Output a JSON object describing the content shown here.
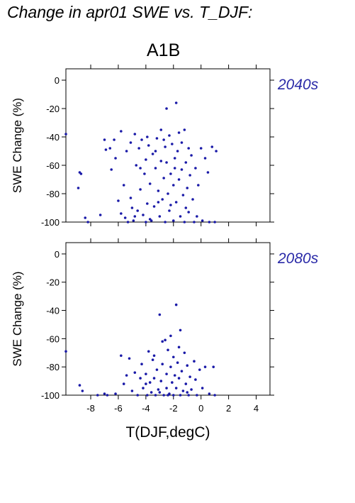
{
  "title": "Change in apr01 SWE vs. T_DJF:",
  "scenario": "A1B",
  "colors": {
    "points": "#1a1aa8",
    "period_label": "#2a2aa8"
  },
  "chart_data": [
    {
      "type": "scatter",
      "period": "2040s",
      "xlabel": "T(DJF,degC)",
      "ylabel": "SWE Change (%)",
      "xlim": [
        -9.8,
        5.0
      ],
      "ylim": [
        -100,
        8
      ],
      "xticks": [
        -8,
        -6,
        -4,
        -2,
        0,
        2,
        4
      ],
      "yticks": [
        0,
        -20,
        -40,
        -60,
        -80,
        -100
      ],
      "show_xtick_labels": false,
      "points": [
        [
          -9.8,
          -38
        ],
        [
          -8.8,
          -65
        ],
        [
          -8.7,
          -66
        ],
        [
          -8.9,
          -76
        ],
        [
          -8.4,
          -97
        ],
        [
          -8.2,
          -100
        ],
        [
          -7.3,
          -95
        ],
        [
          -7.0,
          -42
        ],
        [
          -6.9,
          -49
        ],
        [
          -6.6,
          -48
        ],
        [
          -6.5,
          -63
        ],
        [
          -6.3,
          -42
        ],
        [
          -6.2,
          -55
        ],
        [
          -6.0,
          -85
        ],
        [
          -5.8,
          -36
        ],
        [
          -5.8,
          -94
        ],
        [
          -5.6,
          -74
        ],
        [
          -5.5,
          -97
        ],
        [
          -5.4,
          -50
        ],
        [
          -5.3,
          -100
        ],
        [
          -5.1,
          -44
        ],
        [
          -5.1,
          -83
        ],
        [
          -5.0,
          -90
        ],
        [
          -4.9,
          -99
        ],
        [
          -4.8,
          -38
        ],
        [
          -4.7,
          -60
        ],
        [
          -4.6,
          -92
        ],
        [
          -4.5,
          -48
        ],
        [
          -4.4,
          -77
        ],
        [
          -4.3,
          -42
        ],
        [
          -4.2,
          -95
        ],
        [
          -4.1,
          -66
        ],
        [
          -4.0,
          -56
        ],
        [
          -4.0,
          -100
        ],
        [
          -3.9,
          -87
        ],
        [
          -3.8,
          -46
        ],
        [
          -3.7,
          -73
        ],
        [
          -3.6,
          -99
        ],
        [
          -3.5,
          -52
        ],
        [
          -3.4,
          -89
        ],
        [
          -3.3,
          -62
        ],
        [
          -3.2,
          -41
        ],
        [
          -3.1,
          -78
        ],
        [
          -3.0,
          -96
        ],
        [
          -2.9,
          -57
        ],
        [
          -2.9,
          -35
        ],
        [
          -2.8,
          -84
        ],
        [
          -2.7,
          -69
        ],
        [
          -2.6,
          -47
        ],
        [
          -2.6,
          -100
        ],
        [
          -2.5,
          -20
        ],
        [
          -2.5,
          -58
        ],
        [
          -2.4,
          -80
        ],
        [
          -2.3,
          -39
        ],
        [
          -2.3,
          -92
        ],
        [
          -2.2,
          -66
        ],
        [
          -2.1,
          -45
        ],
        [
          -2.0,
          -74
        ],
        [
          -2.0,
          -99
        ],
        [
          -1.9,
          -55
        ],
        [
          -1.8,
          -16
        ],
        [
          -1.8,
          -86
        ],
        [
          -1.7,
          -50
        ],
        [
          -1.6,
          -37
        ],
        [
          -1.6,
          -70
        ],
        [
          -1.5,
          -96
        ],
        [
          -1.4,
          -44
        ],
        [
          -1.4,
          -63
        ],
        [
          -1.3,
          -81
        ],
        [
          -1.2,
          -35
        ],
        [
          -1.2,
          -100
        ],
        [
          -1.1,
          -58
        ],
        [
          -1.0,
          -76
        ],
        [
          -0.9,
          -48
        ],
        [
          -0.9,
          -93
        ],
        [
          -0.8,
          -67
        ],
        [
          -0.7,
          -53
        ],
        [
          -0.6,
          -84
        ],
        [
          -0.5,
          -100
        ],
        [
          -0.4,
          -62
        ],
        [
          -0.3,
          -96
        ],
        [
          -0.2,
          -74
        ],
        [
          0.0,
          -48
        ],
        [
          0.1,
          -99
        ],
        [
          0.3,
          -55
        ],
        [
          0.5,
          -65
        ],
        [
          0.6,
          -100
        ],
        [
          0.8,
          -47
        ],
        [
          1.0,
          -100
        ],
        [
          1.1,
          -50
        ],
        [
          -3.9,
          -40
        ],
        [
          -3.3,
          -50
        ],
        [
          -2.7,
          -42
        ],
        [
          -1.9,
          -62
        ],
        [
          -4.4,
          -62
        ],
        [
          -3.1,
          -86
        ],
        [
          -2.2,
          -88
        ],
        [
          -1.1,
          -90
        ],
        [
          -4.8,
          -96
        ],
        [
          -3.7,
          -98
        ]
      ]
    },
    {
      "type": "scatter",
      "period": "2080s",
      "xlabel": "T(DJF,degC)",
      "ylabel": "SWE Change (%)",
      "xlim": [
        -9.8,
        5.0
      ],
      "ylim": [
        -100,
        8
      ],
      "xticks": [
        -8,
        -6,
        -4,
        -2,
        0,
        2,
        4
      ],
      "yticks": [
        0,
        -20,
        -40,
        -60,
        -80,
        -100
      ],
      "show_xtick_labels": true,
      "points": [
        [
          -9.8,
          -69
        ],
        [
          -8.8,
          -93
        ],
        [
          -8.6,
          -97
        ],
        [
          -7.5,
          -100
        ],
        [
          -7.0,
          -99
        ],
        [
          -6.8,
          -100
        ],
        [
          -6.2,
          -99
        ],
        [
          -5.8,
          -72
        ],
        [
          -5.6,
          -92
        ],
        [
          -5.4,
          -86
        ],
        [
          -5.2,
          -74
        ],
        [
          -5.0,
          -97
        ],
        [
          -4.8,
          -84
        ],
        [
          -4.6,
          -100
        ],
        [
          -4.4,
          -88
        ],
        [
          -4.3,
          -78
        ],
        [
          -4.2,
          -95
        ],
        [
          -4.0,
          -85
        ],
        [
          -3.9,
          -100
        ],
        [
          -3.8,
          -69
        ],
        [
          -3.7,
          -91
        ],
        [
          -3.6,
          -98
        ],
        [
          -3.5,
          -75
        ],
        [
          -3.4,
          -88
        ],
        [
          -3.3,
          -100
        ],
        [
          -3.2,
          -82
        ],
        [
          -3.1,
          -96
        ],
        [
          -3.0,
          -43
        ],
        [
          -2.9,
          -90
        ],
        [
          -2.8,
          -78
        ],
        [
          -2.7,
          -100
        ],
        [
          -2.6,
          -61
        ],
        [
          -2.5,
          -85
        ],
        [
          -2.5,
          -95
        ],
        [
          -2.4,
          -68
        ],
        [
          -2.3,
          -99
        ],
        [
          -2.2,
          -80
        ],
        [
          -2.1,
          -91
        ],
        [
          -2.0,
          -73
        ],
        [
          -2.0,
          -100
        ],
        [
          -1.9,
          -86
        ],
        [
          -1.8,
          -36
        ],
        [
          -1.8,
          -95
        ],
        [
          -1.7,
          -77
        ],
        [
          -1.6,
          -88
        ],
        [
          -1.5,
          -54
        ],
        [
          -1.5,
          -100
        ],
        [
          -1.4,
          -83
        ],
        [
          -1.3,
          -97
        ],
        [
          -1.2,
          -70
        ],
        [
          -1.1,
          -92
        ],
        [
          -1.0,
          -79
        ],
        [
          -0.9,
          -100
        ],
        [
          -0.8,
          -87
        ],
        [
          -0.7,
          -96
        ],
        [
          -0.5,
          -76
        ],
        [
          -0.4,
          -89
        ],
        [
          -0.3,
          -100
        ],
        [
          -0.1,
          -82
        ],
        [
          0.1,
          -95
        ],
        [
          0.3,
          -80
        ],
        [
          0.6,
          -99
        ],
        [
          0.9,
          -80
        ],
        [
          1.0,
          -100
        ],
        [
          -2.8,
          -62
        ],
        [
          -2.2,
          -58
        ],
        [
          -3.4,
          -72
        ],
        [
          -1.6,
          -66
        ],
        [
          -4.0,
          -92
        ],
        [
          -3.0,
          -98
        ],
        [
          -2.4,
          -100
        ],
        [
          -1.0,
          -98
        ]
      ]
    }
  ]
}
